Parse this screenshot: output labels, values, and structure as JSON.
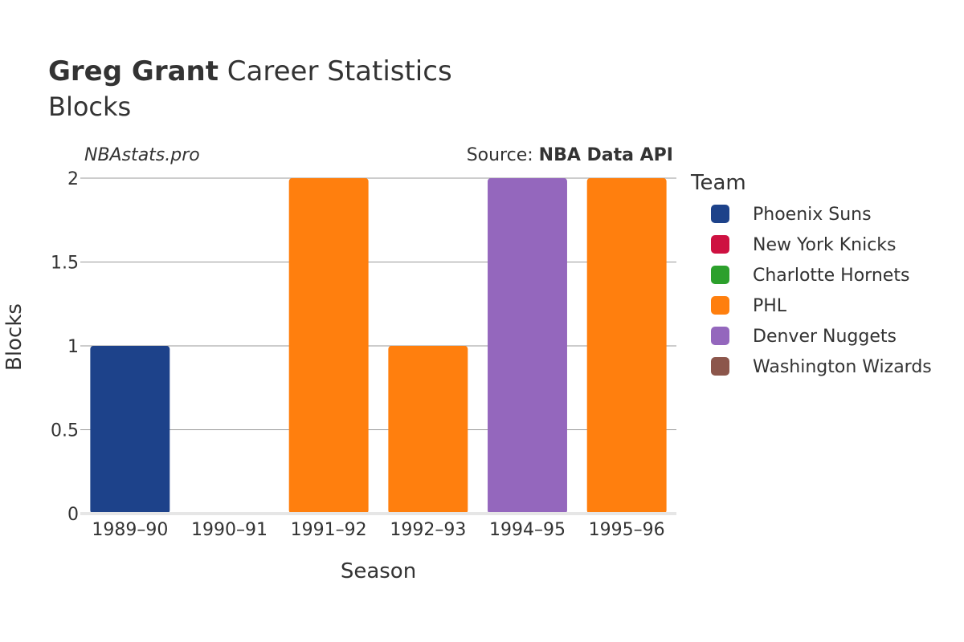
{
  "title": {
    "bold": "Greg Grant",
    "rest": " Career Statistics",
    "subtitle": "Blocks"
  },
  "brand": "NBAstats.pro",
  "source": {
    "prefix": "Source: ",
    "name": "NBA Data API"
  },
  "chart_data": {
    "type": "bar",
    "categories": [
      "1989–90",
      "1990–91",
      "1991–92",
      "1992–93",
      "1994–95",
      "1995–96"
    ],
    "values": [
      1,
      0,
      2,
      1,
      2,
      2
    ],
    "bar_team": [
      "Phoenix Suns",
      "New York Knicks",
      "PHL",
      "PHL",
      "Denver Nuggets",
      "PHL"
    ],
    "xlabel": "Season",
    "ylabel": "Blocks",
    "ylim": [
      0,
      2
    ],
    "yticks": [
      0,
      0.5,
      1,
      1.5,
      2
    ],
    "ytick_labels": [
      "0",
      "0.5",
      "1",
      "1.5",
      "2"
    ],
    "grid": true,
    "legend": {
      "title": "Team",
      "placement": "right",
      "entries": [
        {
          "name": "Phoenix Suns",
          "color": "#1d428a"
        },
        {
          "name": "New York Knicks",
          "color": "#ce1141"
        },
        {
          "name": "Charlotte Hornets",
          "color": "#2ca02c"
        },
        {
          "name": "PHL",
          "color": "#ff7f0e"
        },
        {
          "name": "Denver Nuggets",
          "color": "#9467bd"
        },
        {
          "name": "Washington Wizards",
          "color": "#8c564b"
        }
      ]
    }
  }
}
